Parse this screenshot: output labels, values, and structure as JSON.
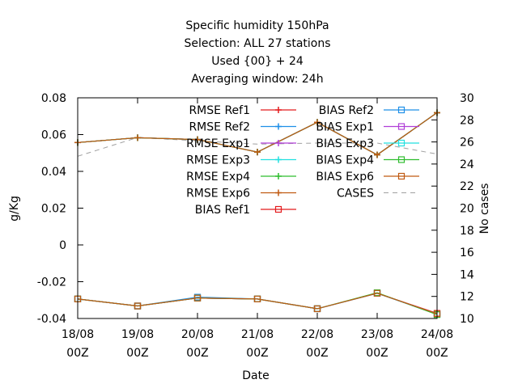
{
  "chart_data": {
    "type": "line",
    "title_lines": [
      "Specific humidity 150hPa",
      "Selection: ALL      27 stations",
      "Used {00} + 24",
      "Averaging window: 24h"
    ],
    "xlabel": "Date",
    "ylabel": "g/Kg",
    "y2label": "No cases",
    "x": [
      "18/08 00Z",
      "19/08 00Z",
      "20/08 00Z",
      "21/08 00Z",
      "22/08 00Z",
      "23/08 00Z",
      "24/08 00Z"
    ],
    "x_tick_labels": [
      [
        "18/08",
        "00Z"
      ],
      [
        "19/08",
        "00Z"
      ],
      [
        "20/08",
        "00Z"
      ],
      [
        "21/08",
        "00Z"
      ],
      [
        "22/08",
        "00Z"
      ],
      [
        "23/08",
        "00Z"
      ],
      [
        "24/08",
        "00Z"
      ]
    ],
    "ylim": [
      -0.04,
      0.08
    ],
    "y_ticks": [
      -0.04,
      -0.02,
      0,
      0.02,
      0.04,
      0.06,
      0.08
    ],
    "y_tick_labels": [
      "-0.04",
      "-0.02",
      "0",
      "0.02",
      "0.04",
      "0.06",
      "0.08"
    ],
    "y2lim": [
      10,
      30
    ],
    "y2_ticks": [
      10,
      12,
      14,
      16,
      18,
      20,
      22,
      24,
      26,
      28,
      30
    ],
    "y2_tick_labels": [
      "10",
      "12",
      "14",
      "16",
      "18",
      "20",
      "22",
      "24",
      "26",
      "28",
      "30"
    ],
    "grid": false,
    "legend_placement": "top (inside plot, two columns)",
    "series": [
      {
        "name": "RMSE Ref1",
        "kind": "rmse",
        "color": "#e41a1c",
        "marker": "plus",
        "axis": "y1",
        "values": [
          0.0557,
          0.0583,
          0.0573,
          0.0505,
          0.0667,
          0.049,
          0.0719
        ]
      },
      {
        "name": "RMSE Ref2",
        "kind": "rmse",
        "color": "#1e8fe8",
        "marker": "plus",
        "axis": "y1",
        "values": [
          0.0557,
          0.0583,
          0.0573,
          0.0505,
          0.0667,
          0.049,
          0.0719
        ]
      },
      {
        "name": "RMSE Exp1",
        "kind": "rmse",
        "color": "#b03fd8",
        "marker": "plus",
        "axis": "y1",
        "values": [
          0.0557,
          0.0583,
          0.0573,
          0.0505,
          0.0667,
          0.049,
          0.0719
        ]
      },
      {
        "name": "RMSE Exp3",
        "kind": "rmse",
        "color": "#22e0e0",
        "marker": "plus",
        "axis": "y1",
        "values": [
          0.0557,
          0.0583,
          0.0573,
          0.0505,
          0.0667,
          0.049,
          0.0719
        ]
      },
      {
        "name": "RMSE Exp4",
        "kind": "rmse",
        "color": "#2ebd2e",
        "marker": "plus",
        "axis": "y1",
        "values": [
          0.0557,
          0.0583,
          0.0573,
          0.0505,
          0.0667,
          0.049,
          0.0719
        ]
      },
      {
        "name": "RMSE Exp6",
        "kind": "rmse",
        "color": "#c05a12",
        "marker": "plus",
        "axis": "y1",
        "values": [
          0.0557,
          0.0583,
          0.0573,
          0.0505,
          0.0667,
          0.049,
          0.0719
        ]
      },
      {
        "name": "BIAS Ref1",
        "kind": "bias",
        "color": "#e41a1c",
        "marker": "square",
        "axis": "y1",
        "values": [
          -0.0294,
          -0.0332,
          -0.0289,
          -0.0294,
          -0.0347,
          -0.0263,
          -0.0372
        ]
      },
      {
        "name": "BIAS Ref2",
        "kind": "bias",
        "color": "#1e8fe8",
        "marker": "square",
        "axis": "y1",
        "values": [
          -0.0294,
          -0.0332,
          -0.0284,
          -0.0294,
          -0.0347,
          -0.0263,
          -0.0377
        ]
      },
      {
        "name": "BIAS Exp1",
        "kind": "bias",
        "color": "#b03fd8",
        "marker": "square",
        "axis": "y1",
        "values": [
          -0.0294,
          -0.0332,
          -0.0289,
          -0.0294,
          -0.0347,
          -0.0263,
          -0.0374
        ]
      },
      {
        "name": "BIAS Exp3",
        "kind": "bias",
        "color": "#22e0e0",
        "marker": "square",
        "axis": "y1",
        "values": [
          -0.0294,
          -0.0332,
          -0.0289,
          -0.0294,
          -0.0347,
          -0.0263,
          -0.0375
        ]
      },
      {
        "name": "BIAS Exp4",
        "kind": "bias",
        "color": "#2ebd2e",
        "marker": "square",
        "axis": "y1",
        "values": [
          -0.0294,
          -0.0332,
          -0.0289,
          -0.0294,
          -0.0347,
          -0.026,
          -0.0379
        ]
      },
      {
        "name": "BIAS Exp6",
        "kind": "bias",
        "color": "#c05a12",
        "marker": "square",
        "axis": "y1",
        "values": [
          -0.0294,
          -0.0332,
          -0.0289,
          -0.0294,
          -0.0347,
          -0.0263,
          -0.0374
        ]
      },
      {
        "name": "CASES",
        "kind": "cases",
        "color": "#a0a0a0",
        "marker": "none",
        "dashed": true,
        "axis": "y2",
        "values": [
          24.7,
          26.4,
          26.1,
          25.8,
          25.9,
          25.9,
          24.9
        ]
      }
    ]
  }
}
